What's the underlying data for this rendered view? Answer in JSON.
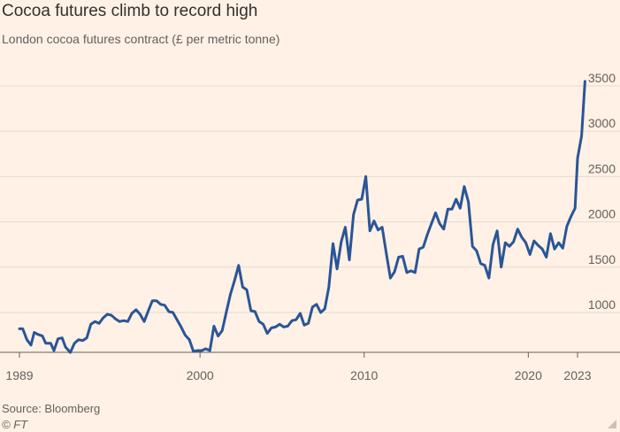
{
  "header": {
    "title": "Cocoa futures climb to record high",
    "subtitle": "London cocoa futures contract (£ per metric tonne)"
  },
  "footer": {
    "source": "Source: Bloomberg",
    "copyright": "© FT"
  },
  "colors": {
    "background": "#fff1e5",
    "line": "#2a5597",
    "gridline": "#e6d9ce",
    "axis": "#66605c"
  },
  "chart_data": {
    "type": "line",
    "title": "Cocoa futures climb to record high",
    "subtitle": "London cocoa futures contract (£ per metric tonne)",
    "xlabel": "",
    "ylabel": "£ per metric tonne",
    "xlim": [
      1989,
      2023
    ],
    "ylim": [
      500,
      3600
    ],
    "grid": true,
    "y_axis_side": "right",
    "x_ticks": [
      {
        "value": 1989,
        "label": "1989"
      },
      {
        "value": 2000,
        "label": "2000"
      },
      {
        "value": 2010,
        "label": "2010"
      },
      {
        "value": 2020,
        "label": "2020"
      },
      {
        "value": 2023,
        "label": "2023"
      }
    ],
    "y_ticks": [
      {
        "value": 1000,
        "label": "1000"
      },
      {
        "value": 1500,
        "label": "1500"
      },
      {
        "value": 2000,
        "label": "2000"
      },
      {
        "value": 2500,
        "label": "2500"
      },
      {
        "value": 3000,
        "label": "3000"
      },
      {
        "value": 3500,
        "label": "3500"
      }
    ],
    "series": [
      {
        "name": "London cocoa futures",
        "points": [
          [
            1989.0,
            820
          ],
          [
            1989.2,
            820
          ],
          [
            1989.45,
            700
          ],
          [
            1989.7,
            640
          ],
          [
            1989.9,
            780
          ],
          [
            1990.1,
            760
          ],
          [
            1990.4,
            740
          ],
          [
            1990.6,
            660
          ],
          [
            1990.9,
            660
          ],
          [
            1991.1,
            580
          ],
          [
            1991.35,
            710
          ],
          [
            1991.6,
            720
          ],
          [
            1991.8,
            620
          ],
          [
            1992.1,
            560
          ],
          [
            1992.35,
            660
          ],
          [
            1992.6,
            700
          ],
          [
            1992.85,
            690
          ],
          [
            1993.1,
            720
          ],
          [
            1993.35,
            870
          ],
          [
            1993.6,
            900
          ],
          [
            1993.85,
            880
          ],
          [
            1994.1,
            940
          ],
          [
            1994.35,
            980
          ],
          [
            1994.6,
            970
          ],
          [
            1994.85,
            930
          ],
          [
            1995.1,
            900
          ],
          [
            1995.35,
            910
          ],
          [
            1995.6,
            900
          ],
          [
            1995.85,
            990
          ],
          [
            1996.1,
            1030
          ],
          [
            1996.35,
            980
          ],
          [
            1996.6,
            900
          ],
          [
            1996.85,
            1020
          ],
          [
            1997.1,
            1130
          ],
          [
            1997.35,
            1130
          ],
          [
            1997.6,
            1090
          ],
          [
            1997.85,
            1080
          ],
          [
            1998.1,
            1010
          ],
          [
            1998.35,
            1000
          ],
          [
            1998.6,
            920
          ],
          [
            1998.85,
            840
          ],
          [
            1999.1,
            750
          ],
          [
            1999.35,
            700
          ],
          [
            1999.6,
            570
          ],
          [
            1999.85,
            580
          ],
          [
            2000.1,
            580
          ],
          [
            2000.35,
            600
          ],
          [
            2000.6,
            580
          ],
          [
            2000.85,
            850
          ],
          [
            2001.1,
            740
          ],
          [
            2001.35,
            800
          ],
          [
            2001.6,
            1000
          ],
          [
            2001.85,
            1200
          ],
          [
            2002.1,
            1350
          ],
          [
            2002.35,
            1520
          ],
          [
            2002.6,
            1280
          ],
          [
            2002.85,
            1250
          ],
          [
            2003.1,
            1020
          ],
          [
            2003.35,
            1010
          ],
          [
            2003.6,
            900
          ],
          [
            2003.85,
            870
          ],
          [
            2004.1,
            770
          ],
          [
            2004.35,
            830
          ],
          [
            2004.6,
            840
          ],
          [
            2004.85,
            870
          ],
          [
            2005.1,
            840
          ],
          [
            2005.35,
            850
          ],
          [
            2005.6,
            910
          ],
          [
            2005.85,
            920
          ],
          [
            2006.1,
            990
          ],
          [
            2006.35,
            860
          ],
          [
            2006.6,
            880
          ],
          [
            2006.85,
            1060
          ],
          [
            2007.1,
            1090
          ],
          [
            2007.35,
            1000
          ],
          [
            2007.6,
            1040
          ],
          [
            2007.85,
            1280
          ],
          [
            2008.1,
            1760
          ],
          [
            2008.35,
            1480
          ],
          [
            2008.6,
            1780
          ],
          [
            2008.85,
            1940
          ],
          [
            2009.1,
            1580
          ],
          [
            2009.35,
            2080
          ],
          [
            2009.6,
            2240
          ],
          [
            2009.85,
            2250
          ],
          [
            2010.1,
            2500
          ],
          [
            2010.35,
            1900
          ],
          [
            2010.6,
            2010
          ],
          [
            2010.85,
            1910
          ],
          [
            2011.1,
            1940
          ],
          [
            2011.35,
            1650
          ],
          [
            2011.6,
            1380
          ],
          [
            2011.85,
            1450
          ],
          [
            2012.1,
            1610
          ],
          [
            2012.35,
            1620
          ],
          [
            2012.6,
            1440
          ],
          [
            2012.85,
            1460
          ],
          [
            2013.1,
            1440
          ],
          [
            2013.35,
            1700
          ],
          [
            2013.6,
            1720
          ],
          [
            2013.85,
            1860
          ],
          [
            2014.1,
            1980
          ],
          [
            2014.35,
            2100
          ],
          [
            2014.6,
            1980
          ],
          [
            2014.85,
            1920
          ],
          [
            2015.1,
            2140
          ],
          [
            2015.35,
            2140
          ],
          [
            2015.6,
            2250
          ],
          [
            2015.85,
            2150
          ],
          [
            2016.1,
            2390
          ],
          [
            2016.35,
            2220
          ],
          [
            2016.6,
            1730
          ],
          [
            2016.85,
            1680
          ],
          [
            2017.1,
            1540
          ],
          [
            2017.35,
            1520
          ],
          [
            2017.6,
            1380
          ],
          [
            2017.85,
            1750
          ],
          [
            2018.1,
            1900
          ],
          [
            2018.35,
            1500
          ],
          [
            2018.6,
            1770
          ],
          [
            2018.85,
            1730
          ],
          [
            2019.1,
            1780
          ],
          [
            2019.35,
            1920
          ],
          [
            2019.6,
            1830
          ],
          [
            2019.85,
            1770
          ],
          [
            2020.1,
            1640
          ],
          [
            2020.35,
            1790
          ],
          [
            2020.6,
            1740
          ],
          [
            2020.85,
            1700
          ],
          [
            2021.1,
            1610
          ],
          [
            2021.35,
            1870
          ],
          [
            2021.6,
            1700
          ],
          [
            2021.85,
            1770
          ],
          [
            2022.1,
            1710
          ],
          [
            2022.35,
            1950
          ],
          [
            2022.6,
            2060
          ],
          [
            2022.85,
            2150
          ],
          [
            2023.0,
            2700
          ],
          [
            2023.25,
            2950
          ],
          [
            2023.45,
            3550
          ]
        ]
      }
    ]
  }
}
